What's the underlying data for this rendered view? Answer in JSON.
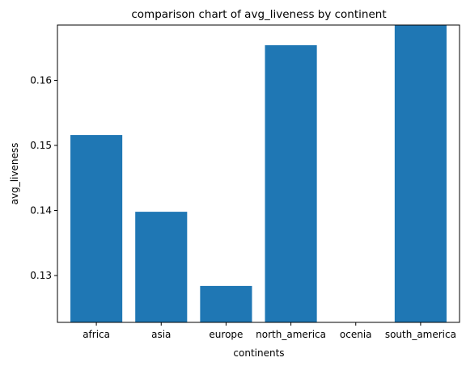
{
  "chart_data": {
    "type": "bar",
    "title": "comparison chart of avg_liveness by continent",
    "xlabel": "continents",
    "ylabel": "avg_liveness",
    "categories": [
      "africa",
      "asia",
      "europe",
      "north_america",
      "ocenia",
      "south_america"
    ],
    "values": [
      0.1516,
      0.1398,
      0.1284,
      0.1654,
      0.1214,
      0.1685
    ],
    "ylim": [
      0.1228,
      0.1685
    ],
    "yticks": [
      {
        "value": 0.13,
        "label": "0.13"
      },
      {
        "value": 0.14,
        "label": "0.14"
      },
      {
        "value": 0.15,
        "label": "0.15"
      },
      {
        "value": 0.16,
        "label": "0.16"
      }
    ],
    "bar_color": "#1f77b4",
    "grid": false,
    "legend": "none"
  }
}
